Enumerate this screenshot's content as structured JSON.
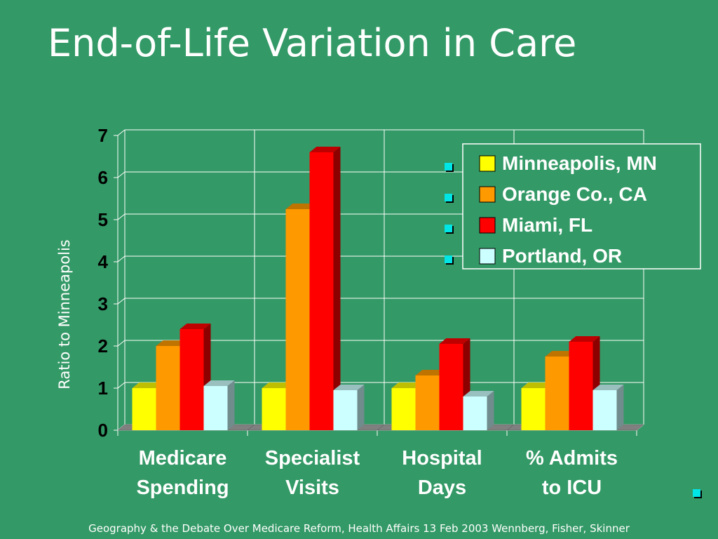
{
  "slide": {
    "title": "End-of-Life Variation in Care",
    "footer": "Geography & the Debate Over Medicare Reform, Health Affairs 13 Feb 2003 Wennberg, Fisher, Skinner"
  },
  "colors": {
    "background": "#339966",
    "bullet": "#00e6e6"
  },
  "chart_data": {
    "type": "bar",
    "style": "3d-clustered",
    "categories": [
      [
        "Medicare",
        "Spending"
      ],
      [
        "Specialist",
        "Visits"
      ],
      [
        "Hospital",
        "Days"
      ],
      [
        "% Admits",
        "to ICU"
      ]
    ],
    "series": [
      {
        "name": "Minneapolis, MN",
        "color": "#ffff00",
        "values": [
          1.0,
          1.0,
          1.0,
          1.0
        ]
      },
      {
        "name": "Orange Co., CA",
        "color": "#ff9900",
        "values": [
          2.0,
          5.25,
          1.3,
          1.75
        ]
      },
      {
        "name": "Miami, FL",
        "color": "#ff0000",
        "values": [
          2.4,
          6.6,
          2.05,
          2.1
        ]
      },
      {
        "name": "Portland, OR",
        "color": "#ccffff",
        "values": [
          1.05,
          0.95,
          0.8,
          0.95
        ]
      }
    ],
    "ylabel": "Ratio to Minneapolis",
    "xlabel": "",
    "ylim": [
      0,
      7
    ],
    "yticks": [
      0,
      1,
      2,
      3,
      4,
      5,
      6,
      7
    ],
    "grid": true,
    "legend": "top-right"
  }
}
